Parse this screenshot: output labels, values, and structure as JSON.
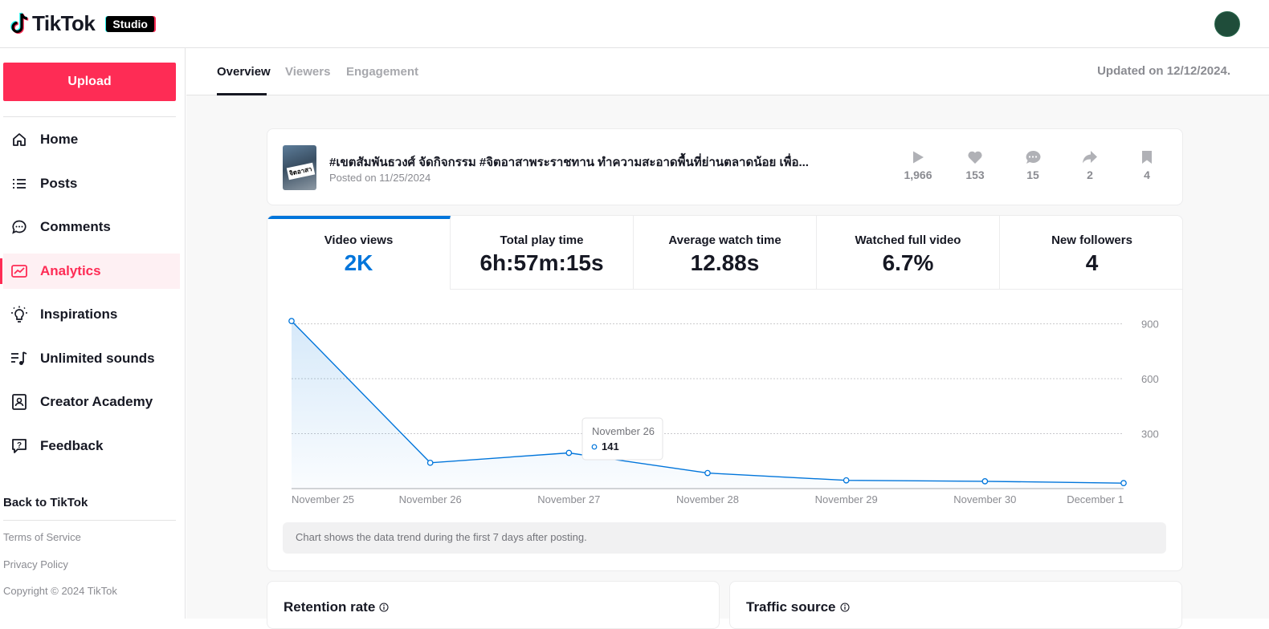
{
  "brand": {
    "logo_text": "TikTok",
    "badge": "Studio",
    "accent": "#fe2c55",
    "chart_color": "#0075db"
  },
  "sidebar": {
    "upload_label": "Upload",
    "items": [
      {
        "label": "Home",
        "icon": "home-icon"
      },
      {
        "label": "Posts",
        "icon": "list-icon"
      },
      {
        "label": "Comments",
        "icon": "comment-icon"
      },
      {
        "label": "Analytics",
        "icon": "analytics-icon",
        "active": true
      },
      {
        "label": "Inspirations",
        "icon": "lightbulb-icon"
      },
      {
        "label": "Unlimited sounds",
        "icon": "music-icon"
      },
      {
        "label": "Creator Academy",
        "icon": "academy-icon"
      },
      {
        "label": "Feedback",
        "icon": "feedback-icon"
      }
    ],
    "back_label": "Back to TikTok",
    "footer": {
      "terms": "Terms of Service",
      "privacy": "Privacy Policy",
      "copyright": "Copyright © 2024 TikTok"
    }
  },
  "tabs": [
    {
      "label": "Overview",
      "active": true
    },
    {
      "label": "Viewers"
    },
    {
      "label": "Engagement"
    }
  ],
  "updated_text": "Updated on 12/12/2024.",
  "video": {
    "title": "#เขตสัมพันธวงศ์ จัดกิจกรรม #จิตอาสาพระราชทาน ทำความสะอาดพื้นที่ย่านตลาดน้อย เพื่อ...",
    "posted": "Posted on 11/25/2024",
    "thumb_text": "จิตอาสา",
    "stats": [
      {
        "icon": "play-icon",
        "value": "1,966"
      },
      {
        "icon": "heart-icon",
        "value": "153"
      },
      {
        "icon": "comment-icon",
        "value": "15"
      },
      {
        "icon": "share-icon",
        "value": "2"
      },
      {
        "icon": "bookmark-icon",
        "value": "4"
      }
    ]
  },
  "metrics": [
    {
      "label": "Video views",
      "value": "2K",
      "active": true
    },
    {
      "label": "Total play time",
      "value": "6h:57m:15s"
    },
    {
      "label": "Average watch time",
      "value": "12.88s"
    },
    {
      "label": "Watched full video",
      "value": "6.7%"
    },
    {
      "label": "New followers",
      "value": "4"
    }
  ],
  "chart_data": {
    "type": "line",
    "categories": [
      "November 25",
      "November 26",
      "November 27",
      "November 28",
      "November 29",
      "November 30",
      "December 1"
    ],
    "values": [
      915,
      141,
      195,
      85,
      45,
      40,
      30
    ],
    "y_ticks": [
      300,
      600,
      900
    ],
    "ylim": [
      0,
      920
    ],
    "grid": true,
    "tooltip": {
      "date": "November 26",
      "value": "141"
    }
  },
  "chart_note": "Chart shows the data trend during the first 7 days after posting.",
  "bottom_cards": {
    "retention": "Retention rate",
    "traffic": "Traffic source"
  }
}
